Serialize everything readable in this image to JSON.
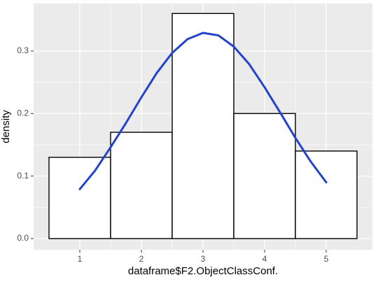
{
  "chart_data": {
    "type": "histogram",
    "x_label": "dataframe$F2.ObjectClassConf.",
    "y_label": "density",
    "bins": [
      0.5,
      1.5,
      2.5,
      3.5,
      4.5,
      5.5
    ],
    "values": [
      0.13,
      0.17,
      0.36,
      0.2,
      0.14
    ],
    "color": "#ffffff",
    "edge_color": "#000000",
    "curve": {
      "color": "#2244cc",
      "x": [
        1,
        1.25,
        1.5,
        1.75,
        2,
        2.25,
        2.5,
        2.75,
        3,
        3.25,
        3.5,
        3.75,
        4,
        4.25,
        4.5,
        4.75,
        5
      ],
      "y": [
        0.079,
        0.109,
        0.146,
        0.185,
        0.226,
        0.265,
        0.297,
        0.319,
        0.329,
        0.325,
        0.307,
        0.279,
        0.242,
        0.202,
        0.161,
        0.123,
        0.09
      ]
    },
    "xlim": [
      0.25,
      5.75
    ],
    "xticks": [
      1,
      2,
      3,
      4,
      5
    ],
    "ylim": [
      -0.018,
      0.376
    ],
    "yticks": [
      {
        "value": 0,
        "label": "0.0"
      },
      0.1,
      0.2,
      0.3
    ],
    "grid": true
  }
}
